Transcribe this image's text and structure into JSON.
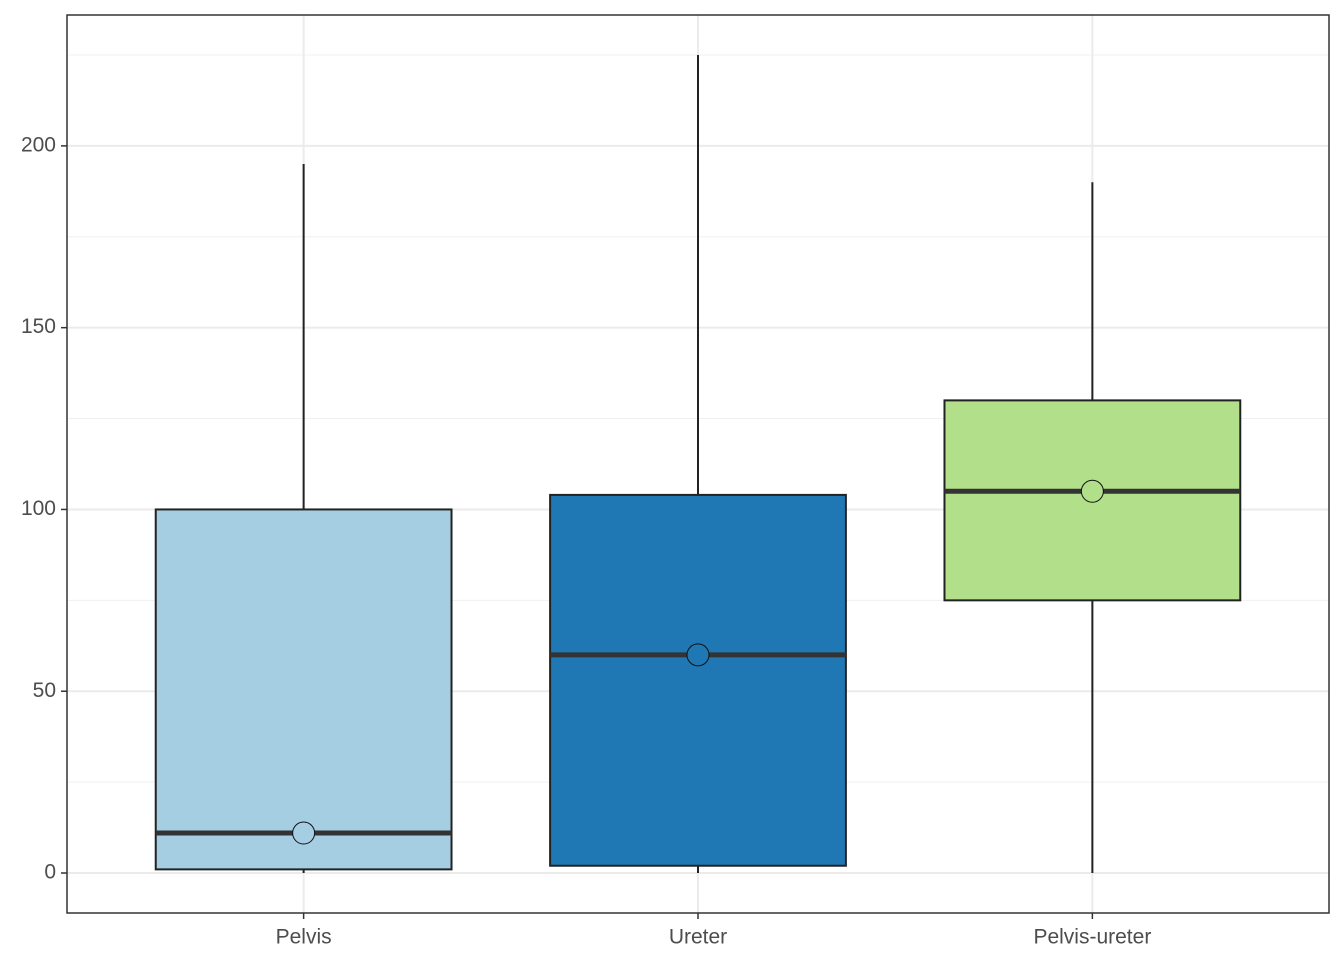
{
  "chart_data": {
    "type": "box",
    "categories": [
      "Pelvis",
      "Ureter",
      "Pelvis-ureter"
    ],
    "colors": [
      "#a6cee3",
      "#1f78b4",
      "#b2df8a"
    ],
    "min": [
      0,
      0,
      0
    ],
    "q1": [
      1,
      2,
      75
    ],
    "median": [
      11,
      60,
      105
    ],
    "q3": [
      100,
      104,
      130
    ],
    "max": [
      195,
      225,
      190
    ],
    "means": [
      11,
      60,
      105
    ],
    "ylim": [
      -11,
      236
    ],
    "yticks": [
      0,
      50,
      100,
      150,
      200
    ],
    "minor_yticks": [
      25,
      75,
      125,
      175,
      225
    ],
    "grid": true
  }
}
